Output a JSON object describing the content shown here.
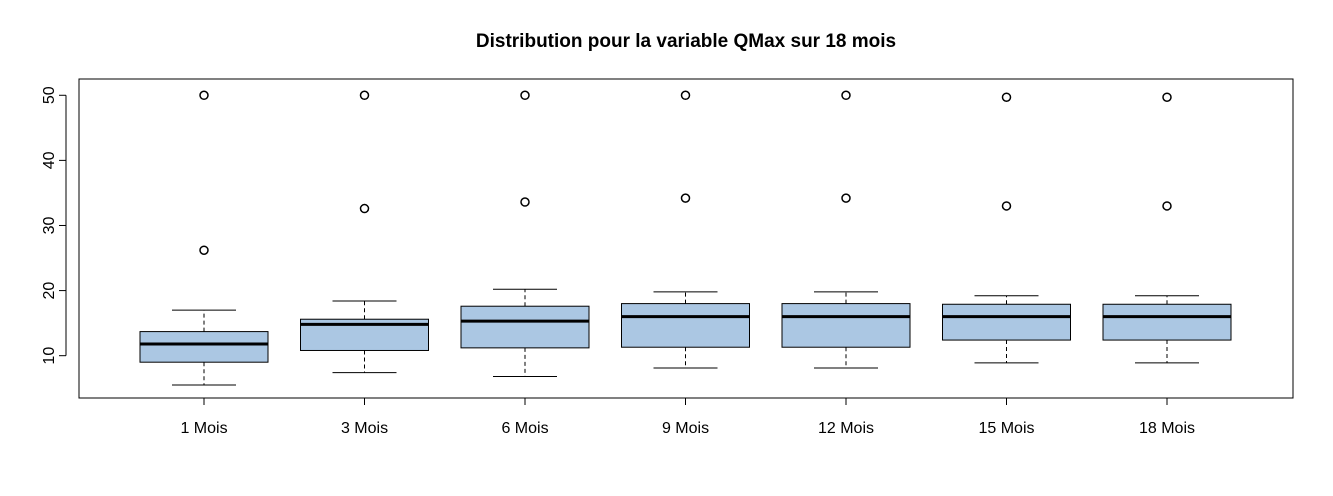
{
  "chart_data": {
    "type": "boxplot",
    "title": "Distribution pour la variable QMax sur 18 mois",
    "xlabel": "",
    "ylabel": "",
    "ylim": [
      3.5,
      52.5
    ],
    "yticks": [
      10,
      20,
      30,
      40,
      50
    ],
    "grid": false,
    "categories": [
      "1 Mois",
      "3 Mois",
      "6 Mois",
      "9 Mois",
      "12  Mois",
      "15 Mois",
      "18 Mois"
    ],
    "box_color": "#abc7e3",
    "series": [
      {
        "whisker_low": 5.5,
        "q1": 9.0,
        "median": 11.8,
        "q3": 13.7,
        "whisker_high": 17.0,
        "outliers": [
          26.2,
          50.0
        ]
      },
      {
        "whisker_low": 7.4,
        "q1": 10.8,
        "median": 14.8,
        "q3": 15.6,
        "whisker_high": 18.4,
        "outliers": [
          32.6,
          50.0
        ]
      },
      {
        "whisker_low": 6.8,
        "q1": 11.2,
        "median": 15.3,
        "q3": 17.6,
        "whisker_high": 20.2,
        "outliers": [
          33.6,
          50.0
        ]
      },
      {
        "whisker_low": 8.1,
        "q1": 11.3,
        "median": 16.0,
        "q3": 18.0,
        "whisker_high": 19.8,
        "outliers": [
          34.2,
          50.0
        ]
      },
      {
        "whisker_low": 8.1,
        "q1": 11.3,
        "median": 16.0,
        "q3": 18.0,
        "whisker_high": 19.8,
        "outliers": [
          34.2,
          50.0
        ]
      },
      {
        "whisker_low": 8.9,
        "q1": 12.4,
        "median": 16.0,
        "q3": 17.9,
        "whisker_high": 19.2,
        "outliers": [
          33.0,
          49.7
        ]
      },
      {
        "whisker_low": 8.9,
        "q1": 12.4,
        "median": 16.0,
        "q3": 17.9,
        "whisker_high": 19.2,
        "outliers": [
          33.0,
          49.7
        ]
      }
    ]
  }
}
